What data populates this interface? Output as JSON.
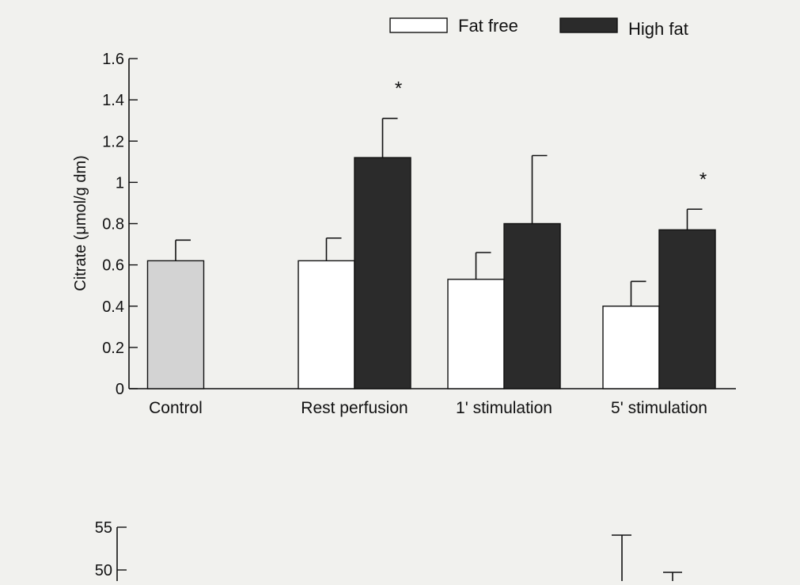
{
  "chart_data": [
    {
      "type": "bar",
      "ylabel": "Citrate (μmol/g dm)",
      "ylim": [
        0,
        1.6
      ],
      "yticks": [
        "0",
        "0.2",
        "0.4",
        "0.6",
        "0.8",
        "1",
        "1.2",
        "1.4",
        "1.6"
      ],
      "legend_position": "top-right",
      "categories": [
        "Control",
        "Rest perfusion",
        "1' stimulation",
        "5' stimulation"
      ],
      "series": [
        {
          "name": "",
          "color": "#d3d3d3",
          "values": [
            0.62,
            null,
            null,
            null
          ],
          "errors": [
            0.1,
            null,
            null,
            null
          ]
        },
        {
          "name": "Fat free",
          "color": "#ffffff",
          "values": [
            null,
            0.62,
            0.53,
            0.4
          ],
          "errors": [
            null,
            0.11,
            0.13,
            0.12
          ]
        },
        {
          "name": "High fat",
          "color": "#2b2b2b",
          "values": [
            null,
            1.12,
            0.8,
            0.77
          ],
          "errors": [
            null,
            0.19,
            0.33,
            0.1
          ]
        }
      ],
      "annotations": [
        {
          "text": "*",
          "category": "Rest perfusion",
          "series": "High fat"
        },
        {
          "text": "*",
          "category": "5' stimulation",
          "series": "High fat"
        }
      ],
      "legend": [
        {
          "label": "Fat free",
          "color": "#ffffff"
        },
        {
          "label": "High fat",
          "color": "#2b2b2b"
        }
      ]
    },
    {
      "type": "bar",
      "ylim": [
        0,
        55
      ],
      "yticks": [
        "55",
        "50"
      ],
      "partial": true
    }
  ]
}
